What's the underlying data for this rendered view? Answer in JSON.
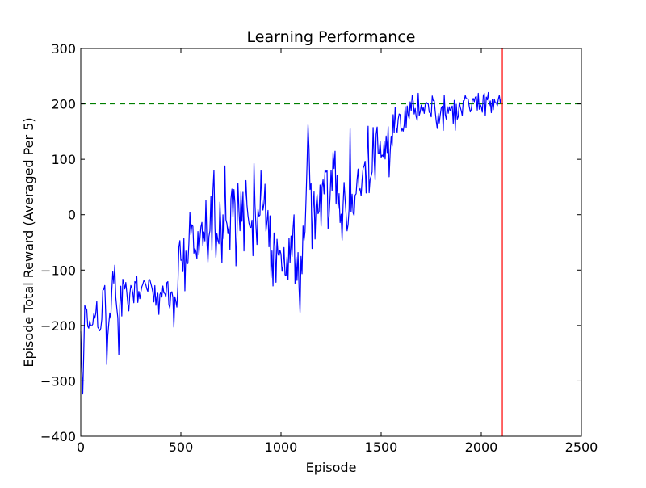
{
  "chart_data": {
    "type": "line",
    "title": "Learning Performance",
    "xlabel": "Episode",
    "ylabel": "Episode Total Reward (Averaged Per 5)",
    "xlim": [
      0,
      2500
    ],
    "ylim": [
      -400,
      300
    ],
    "x_ticks": [
      0,
      500,
      1000,
      1500,
      2000,
      2500
    ],
    "y_ticks": [
      -400,
      -300,
      -200,
      -100,
      0,
      100,
      200,
      300
    ],
    "x_tick_labels": [
      "0",
      "500",
      "1000",
      "1500",
      "2000",
      "2500"
    ],
    "y_tick_labels": [
      "−400",
      "−300",
      "−200",
      "−100",
      "0",
      "100",
      "200",
      "300"
    ],
    "grid": false,
    "threshold_line": {
      "y": 200,
      "color": "#008000",
      "style": "dashed"
    },
    "marker_line": {
      "x": 2105,
      "color": "#ff0000",
      "style": "solid"
    },
    "series": [
      {
        "color": "#0000ff",
        "x_step": 5,
        "anchors": [
          [
            0,
            -215
          ],
          [
            10,
            -325
          ],
          [
            20,
            -170
          ],
          [
            40,
            -205
          ],
          [
            60,
            -190
          ],
          [
            80,
            -165
          ],
          [
            100,
            -205
          ],
          [
            120,
            -120
          ],
          [
            130,
            -250
          ],
          [
            150,
            -160
          ],
          [
            170,
            -90
          ],
          [
            190,
            -215
          ],
          [
            200,
            -150
          ],
          [
            250,
            -140
          ],
          [
            300,
            -130
          ],
          [
            350,
            -130
          ],
          [
            400,
            -145
          ],
          [
            450,
            -150
          ],
          [
            480,
            -165
          ],
          [
            500,
            -30
          ],
          [
            520,
            -80
          ],
          [
            550,
            0
          ],
          [
            580,
            -60
          ],
          [
            600,
            -40
          ],
          [
            650,
            -10
          ],
          [
            700,
            -30
          ],
          [
            750,
            20
          ],
          [
            800,
            10
          ],
          [
            850,
            0
          ],
          [
            900,
            20
          ],
          [
            930,
            -40
          ],
          [
            950,
            -60
          ],
          [
            1000,
            -70
          ],
          [
            1050,
            -80
          ],
          [
            1080,
            -110
          ],
          [
            1100,
            -100
          ],
          [
            1120,
            -20
          ],
          [
            1140,
            110
          ],
          [
            1160,
            -20
          ],
          [
            1200,
            30
          ],
          [
            1250,
            40
          ],
          [
            1300,
            30
          ],
          [
            1350,
            30
          ],
          [
            1400,
            50
          ],
          [
            1450,
            110
          ],
          [
            1500,
            130
          ],
          [
            1550,
            150
          ],
          [
            1600,
            170
          ],
          [
            1650,
            190
          ],
          [
            1700,
            195
          ],
          [
            1750,
            190
          ],
          [
            1800,
            180
          ],
          [
            1850,
            185
          ],
          [
            1900,
            195
          ],
          [
            1950,
            200
          ],
          [
            2000,
            195
          ],
          [
            2050,
            200
          ],
          [
            2075,
            200
          ],
          [
            2100,
            215
          ]
        ],
        "noise": [
          [
            0,
            12
          ],
          [
            100,
            25
          ],
          [
            200,
            25
          ],
          [
            400,
            25
          ],
          [
            480,
            30
          ],
          [
            500,
            55
          ],
          [
            700,
            60
          ],
          [
            900,
            70
          ],
          [
            1000,
            60
          ],
          [
            1100,
            45
          ],
          [
            1150,
            65
          ],
          [
            1300,
            65
          ],
          [
            1400,
            55
          ],
          [
            1500,
            40
          ],
          [
            1650,
            22
          ],
          [
            1800,
            22
          ],
          [
            2000,
            20
          ],
          [
            2075,
            14
          ],
          [
            2100,
            6
          ]
        ]
      }
    ]
  }
}
